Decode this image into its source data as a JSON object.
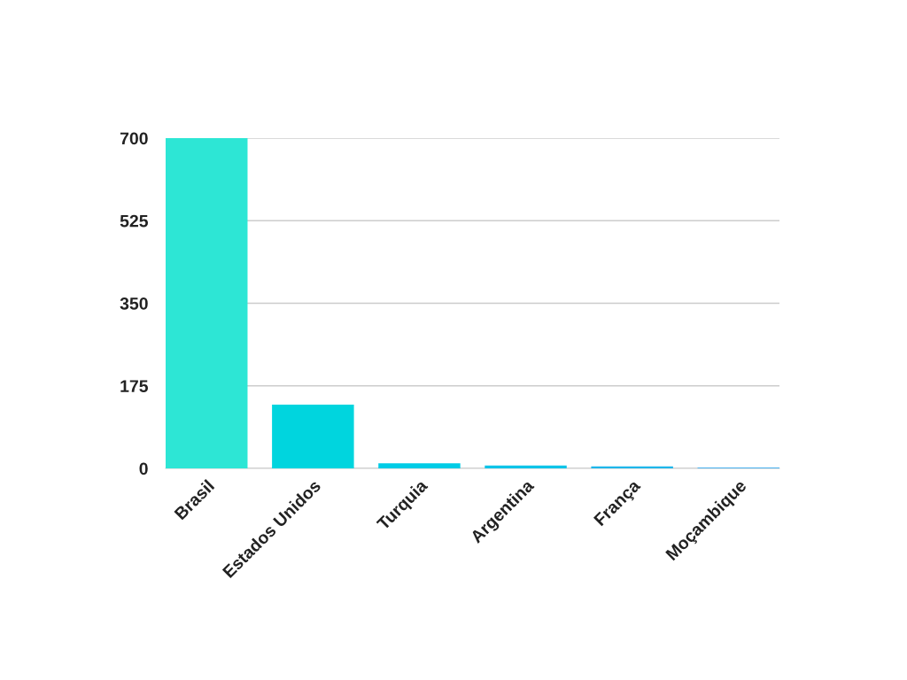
{
  "chart_data": {
    "type": "bar",
    "categories": [
      "Brasil",
      "Estados Unidos",
      "Turquia",
      "Argentina",
      "França",
      "Moçambique"
    ],
    "values": [
      700,
      135,
      11,
      6,
      4,
      2
    ],
    "colors": [
      "#2de6d5",
      "#00d5de",
      "#00cce6",
      "#0ec4e8",
      "#1eb6ea",
      "#47b0ee"
    ],
    "ylim": [
      0,
      700
    ],
    "yticks": [
      0,
      175,
      350,
      525,
      700
    ],
    "grid": "y"
  }
}
